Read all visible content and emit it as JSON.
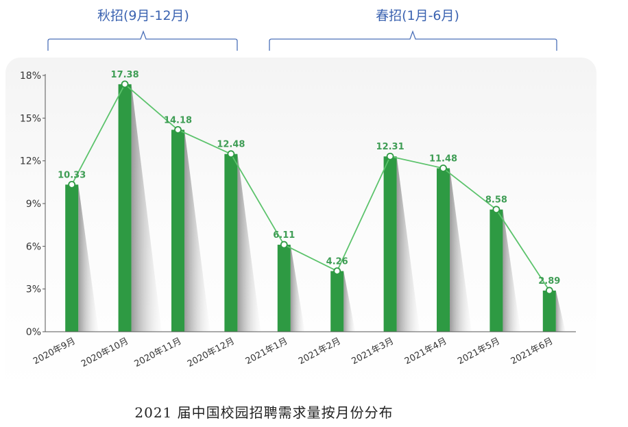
{
  "brackets": [
    {
      "label": "秋招(9月-12月)"
    },
    {
      "label": "春招(1月-6月)"
    }
  ],
  "caption": "2021 届中国校园招聘需求量按月份分布",
  "colors": {
    "bar": "#2e9a43",
    "line": "#5cc36c",
    "label": "#3f9d55",
    "bracket": "#4a6fb8",
    "axis": "#555555"
  },
  "chart_data": {
    "type": "bar",
    "categories": [
      "2020年9月",
      "2020年10月",
      "2020年11月",
      "2020年12月",
      "2021年1月",
      "2021年2月",
      "2021年3月",
      "2021年4月",
      "2021年5月",
      "2021年6月"
    ],
    "values": [
      10.33,
      17.38,
      14.18,
      12.48,
      6.11,
      4.26,
      12.31,
      11.48,
      8.58,
      2.89
    ],
    "value_labels": [
      "10.33",
      "17.38",
      "14.18",
      "12.48",
      "6.11",
      "4.26",
      "12.31",
      "11.48",
      "8.58",
      "2.89"
    ],
    "overlay": "line through bar tops",
    "ylim": [
      0,
      18
    ],
    "yticks": [
      0,
      3,
      6,
      9,
      12,
      15,
      18
    ],
    "ytick_labels": [
      "0%",
      "3%",
      "6%",
      "9%",
      "12%",
      "15%",
      "18%"
    ],
    "grid": false,
    "title": "",
    "xlabel": "",
    "ylabel": ""
  }
}
